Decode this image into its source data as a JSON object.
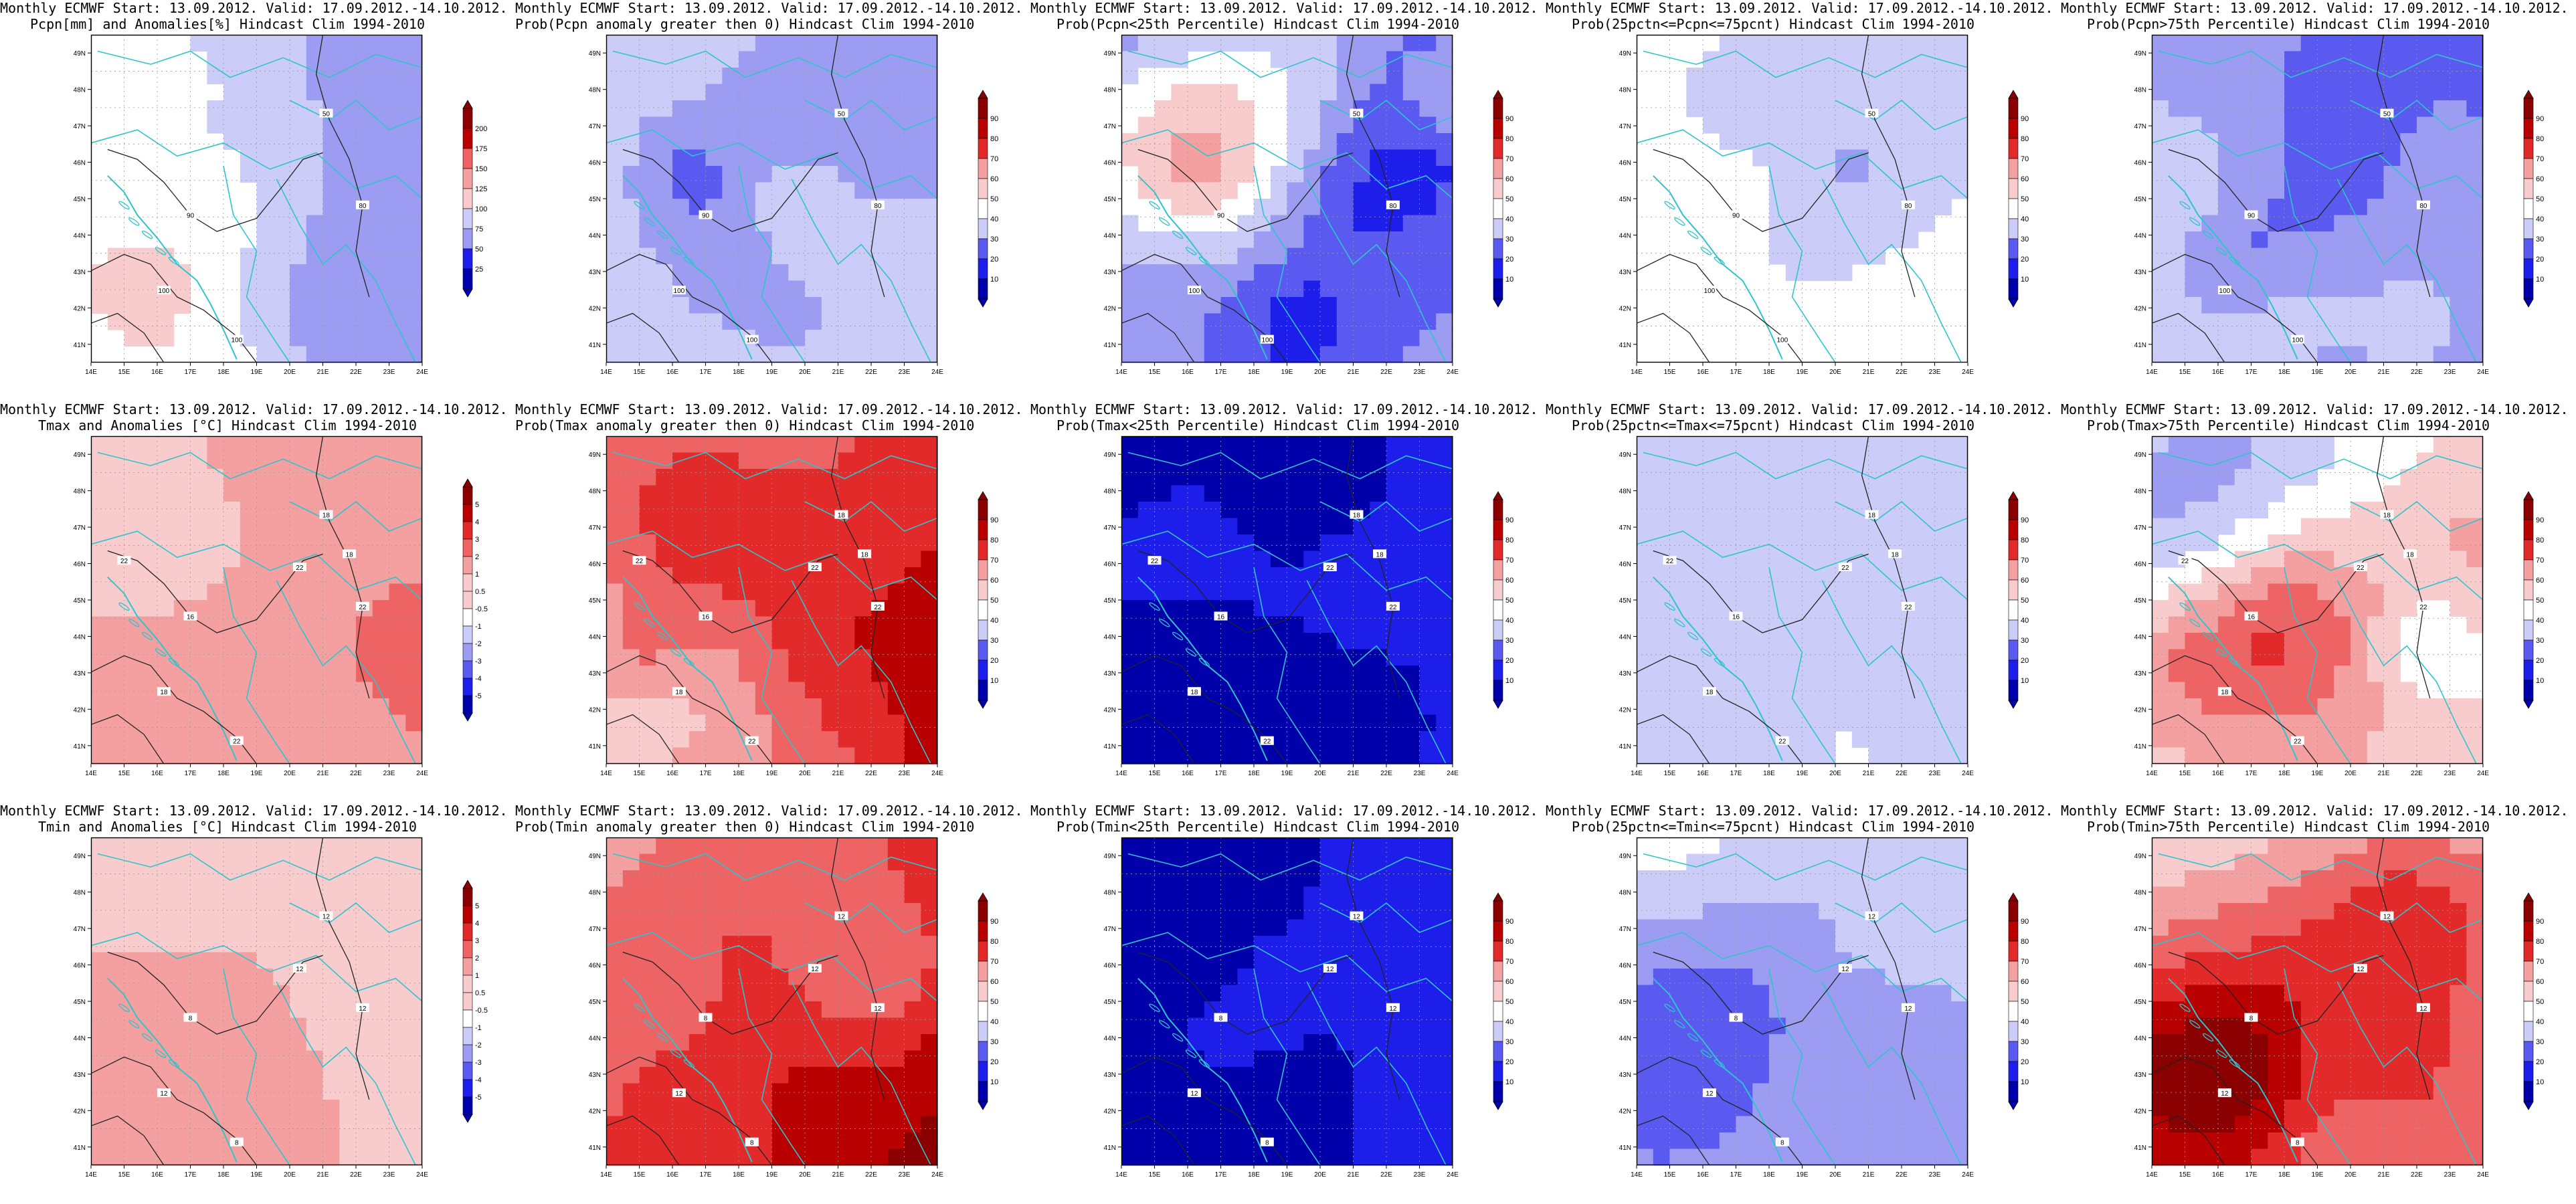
{
  "header_line": "Monthly ECMWF Start: 13.09.2012. Valid: 17.09.2012.-14.10.2012.",
  "map_axes": {
    "lon_labels": [
      "14E",
      "15E",
      "16E",
      "17E",
      "18E",
      "19E",
      "20E",
      "21E",
      "22E",
      "23E",
      "24E"
    ],
    "lat_labels": [
      "49N",
      "48N",
      "47N",
      "46N",
      "45N",
      "44N",
      "43N",
      "42N",
      "41N"
    ]
  },
  "colorbars": {
    "precip_anom": [
      "200",
      "175",
      "150",
      "125",
      "100",
      "75",
      "50",
      "25"
    ],
    "temp_anom": [
      "5",
      "4",
      "3",
      "2",
      "1",
      "0.5",
      "-0.5",
      "-1",
      "-2",
      "-3",
      "-4",
      "-5"
    ],
    "prob": [
      "90",
      "80",
      "70",
      "60",
      "50",
      "40",
      "30",
      "20",
      "10"
    ]
  },
  "panels": [
    {
      "title2": "Pcpn[mm] and Anomalies[%] Hindcast Clim 1994-2010",
      "colorbar": "precip_anom",
      "field": "precip_anom",
      "contour_labels": [
        "90",
        "100",
        "50",
        "80",
        "100"
      ]
    },
    {
      "title2": "Prob(Pcpn anomaly greater then 0) Hindcast Clim 1994-2010",
      "colorbar": "prob",
      "field": "p_precip_pos",
      "contour_labels": [
        "90",
        "100",
        "50",
        "80",
        "100"
      ]
    },
    {
      "title2": "Prob(Pcpn<25th Percentile) Hindcast Clim 1994-2010",
      "colorbar": "prob",
      "field": "p_precip_low",
      "contour_labels": [
        "90",
        "100",
        "50",
        "80",
        "100"
      ]
    },
    {
      "title2": "Prob(25pctn<=Pcpn<=75pcnt) Hindcast Clim 1994-2010",
      "colorbar": "prob",
      "field": "p_precip_mid",
      "contour_labels": [
        "90",
        "100",
        "50",
        "80",
        "100"
      ]
    },
    {
      "title2": "Prob(Pcpn>75th Percentile) Hindcast Clim 1994-2010",
      "colorbar": "prob",
      "field": "p_precip_high",
      "contour_labels": [
        "90",
        "100",
        "50",
        "80",
        "100"
      ]
    },
    {
      "title2": "Tmax and Anomalies [°C] Hindcast Clim 1994-2010",
      "colorbar": "temp_anom",
      "field": "tmax_anom",
      "contour_labels": [
        "16",
        "18",
        "18",
        "22",
        "22",
        "22",
        "18",
        "22"
      ]
    },
    {
      "title2": "Prob(Tmax anomaly greater then 0) Hindcast Clim 1994-2010",
      "colorbar": "prob",
      "field": "p_tmax_pos",
      "contour_labels": [
        "16",
        "18",
        "18",
        "22",
        "22",
        "22",
        "18",
        "22"
      ]
    },
    {
      "title2": "Prob(Tmax<25th Percentile) Hindcast Clim 1994-2010",
      "colorbar": "prob",
      "field": "p_tmax_low",
      "contour_labels": [
        "16",
        "18",
        "18",
        "22",
        "22",
        "22",
        "18",
        "22"
      ]
    },
    {
      "title2": "Prob(25pctn<=Tmax<=75pcnt) Hindcast Clim 1994-2010",
      "colorbar": "prob",
      "field": "p_tmax_mid",
      "contour_labels": [
        "16",
        "18",
        "18",
        "22",
        "22",
        "22",
        "18",
        "22"
      ]
    },
    {
      "title2": "Prob(Tmax>75th Percentile) Hindcast Clim 1994-2010",
      "colorbar": "prob",
      "field": "p_tmax_high",
      "contour_labels": [
        "16",
        "18",
        "18",
        "22",
        "22",
        "22",
        "18",
        "22"
      ]
    },
    {
      "title2": "Tmin and Anomalies [°C] Hindcast Clim 1994-2010",
      "colorbar": "temp_anom",
      "field": "tmin_anom",
      "contour_labels": [
        "8",
        "12",
        "12",
        "12",
        "8",
        "12"
      ]
    },
    {
      "title2": "Prob(Tmin anomaly greater then 0) Hindcast Clim 1994-2010",
      "colorbar": "prob",
      "field": "p_tmin_pos",
      "contour_labels": [
        "8",
        "12",
        "12",
        "12",
        "8",
        "12"
      ]
    },
    {
      "title2": "Prob(Tmin<25th Percentile) Hindcast Clim 1994-2010",
      "colorbar": "prob",
      "field": "p_tmin_low",
      "contour_labels": [
        "8",
        "12",
        "12",
        "12",
        "8",
        "12"
      ]
    },
    {
      "title2": "Prob(25pctn<=Tmin<=75pcnt) Hindcast Clim 1994-2010",
      "colorbar": "prob",
      "field": "p_tmin_mid",
      "contour_labels": [
        "8",
        "12",
        "12",
        "12",
        "8",
        "12"
      ]
    },
    {
      "title2": "Prob(Tmin>75th Percentile) Hindcast Clim 1994-2010",
      "colorbar": "prob",
      "field": "p_tmin_high",
      "contour_labels": [
        "8",
        "12",
        "12",
        "12",
        "8",
        "12"
      ]
    }
  ],
  "colors": {
    "coast": "#2ec4cc",
    "contour": "#222222",
    "scale_blue_to_red": [
      "#0000aa",
      "#1e1eea",
      "#5a5af0",
      "#9c9cf2",
      "#ccccf8",
      "#ffffff",
      "#f8cccc",
      "#f4a0a0",
      "#ee6464",
      "#e22a2a",
      "#b80000",
      "#8a0000"
    ]
  }
}
